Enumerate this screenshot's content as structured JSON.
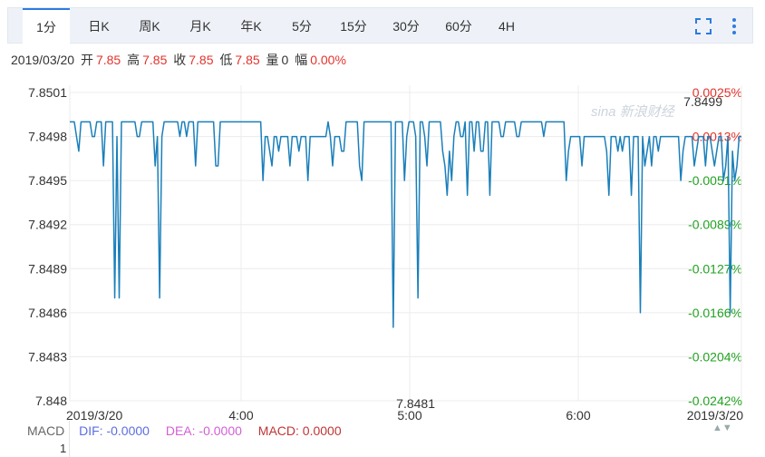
{
  "tabs": [
    {
      "label": "1分",
      "active": true
    },
    {
      "label": "日K"
    },
    {
      "label": "周K"
    },
    {
      "label": "月K"
    },
    {
      "label": "年K"
    },
    {
      "label": "5分"
    },
    {
      "label": "15分"
    },
    {
      "label": "30分"
    },
    {
      "label": "60分"
    },
    {
      "label": "4H"
    }
  ],
  "quote": {
    "date": "2019/03/20",
    "open_label": "开",
    "open": "7.85",
    "high_label": "高",
    "high": "7.85",
    "close_label": "收",
    "close": "7.85",
    "low_label": "低",
    "low": "7.85",
    "vol_label": "量",
    "vol": "0",
    "range_label": "幅",
    "range": "0.00%"
  },
  "watermark": "新浪财经",
  "colors": {
    "line": "#1a7fba",
    "up": "#e5322b",
    "down": "#22a322",
    "accent": "#2e7be0"
  },
  "chart_data": {
    "type": "line",
    "y_ticks": [
      "7.8501",
      "7.8498",
      "7.8495",
      "7.8492",
      "7.8489",
      "7.8486",
      "7.8483",
      "7.848"
    ],
    "pct_ticks": [
      "0.0025%",
      "0.0013%",
      "-0.0051%",
      "-0.0089%",
      "-0.0127%",
      "-0.0166%",
      "-0.0204%",
      "-0.0242%"
    ],
    "x_ticks": [
      "2019/3/20",
      "4:00",
      "5:00",
      "6:00",
      "2019/3/20"
    ],
    "ylim": [
      7.848,
      7.8501
    ],
    "max_label": "7.8499",
    "min_label": "7.8481",
    "values": [
      7.8499,
      7.8499,
      7.8499,
      7.8498,
      7.8497,
      7.8499,
      7.8499,
      7.8499,
      7.8499,
      7.8499,
      7.8498,
      7.8498,
      7.8499,
      7.8499,
      7.8499,
      7.8496,
      7.8499,
      7.8499,
      7.8499,
      7.8499,
      7.8487,
      7.8498,
      7.8487,
      7.8499,
      7.8499,
      7.8499,
      7.8499,
      7.8499,
      7.8499,
      7.8499,
      7.8498,
      7.8498,
      7.8499,
      7.8499,
      7.8499,
      7.8499,
      7.8499,
      7.8499,
      7.8496,
      7.8498,
      7.8487,
      7.8498,
      7.8499,
      7.8499,
      7.8499,
      7.8499,
      7.8499,
      7.8499,
      7.8499,
      7.8498,
      7.8499,
      7.8499,
      7.8498,
      7.8499,
      7.8499,
      7.8499,
      7.8496,
      7.8499,
      7.8499,
      7.8499,
      7.8499,
      7.8499,
      7.8499,
      7.8499,
      7.8499,
      7.8496,
      7.8496,
      7.8499,
      7.8499,
      7.8499,
      7.8499,
      7.8499,
      7.8499,
      7.8499,
      7.8499,
      7.8499,
      7.8499,
      7.8499,
      7.8499,
      7.8499,
      7.8499,
      7.8499,
      7.8499,
      7.8499,
      7.8499,
      7.8499,
      7.8495,
      7.8498,
      7.8498,
      7.8497,
      7.8496,
      7.8498,
      7.8498,
      7.8497,
      7.8498,
      7.8498,
      7.8498,
      7.8498,
      7.8496,
      7.8498,
      7.8498,
      7.8498,
      7.8497,
      7.8498,
      7.8498,
      7.8498,
      7.8495,
      7.8498,
      7.8498,
      7.8498,
      7.8498,
      7.8498,
      7.8498,
      7.8498,
      7.8498,
      7.8499,
      7.8498,
      7.8496,
      7.8498,
      7.8498,
      7.8498,
      7.8497,
      7.8497,
      7.8499,
      7.8499,
      7.8499,
      7.8499,
      7.8499,
      7.8499,
      7.8496,
      7.8495,
      7.8499,
      7.8499,
      7.8499,
      7.8499,
      7.8499,
      7.8499,
      7.8499,
      7.8499,
      7.8499,
      7.8499,
      7.8499,
      7.8499,
      7.8499,
      7.8485,
      7.8499,
      7.8499,
      7.8499,
      7.8499,
      7.8495,
      7.8498,
      7.8499,
      7.8499,
      7.8499,
      7.8498,
      7.8487,
      7.8499,
      7.8499,
      7.8498,
      7.8496,
      7.8499,
      7.8499,
      7.8499,
      7.8499,
      7.8499,
      7.8499,
      7.8497,
      7.8496,
      7.8494,
      7.8497,
      7.8495,
      7.8498,
      7.8499,
      7.8499,
      7.8498,
      7.8498,
      7.8499,
      7.8494,
      7.8499,
      7.8499,
      7.8497,
      7.8499,
      7.8499,
      7.8497,
      7.8497,
      7.8499,
      7.8499,
      7.8494,
      7.8499,
      7.8499,
      7.8499,
      7.8499,
      7.8498,
      7.8498,
      7.8499,
      7.8499,
      7.8499,
      7.8499,
      7.8499,
      7.8498,
      7.8498,
      7.8499,
      7.8499,
      7.8499,
      7.8499,
      7.8499,
      7.8499,
      7.8499,
      7.8499,
      7.8499,
      7.8499,
      7.8498,
      7.8499,
      7.8499,
      7.8499,
      7.8499,
      7.8499,
      7.8499,
      7.8499,
      7.8499,
      7.8499,
      7.8495,
      7.8497,
      7.8498,
      7.8498,
      7.8498,
      7.8498,
      7.8498,
      7.8496,
      7.8498,
      7.8498,
      7.8498,
      7.8498,
      7.8498,
      7.8498,
      7.8498,
      7.8498,
      7.8498,
      7.8498,
      7.8497,
      7.8494,
      7.8498,
      7.8498,
      7.8498,
      7.8497,
      7.8498,
      7.8497,
      7.8498,
      7.8498,
      7.8498,
      7.8494,
      7.8498,
      7.8498,
      7.8498,
      7.8486,
      7.8498,
      7.8496,
      7.8497,
      7.8498,
      7.8496,
      7.8498,
      7.8498,
      7.8497,
      7.8498,
      7.8498,
      7.8498,
      7.8498,
      7.8498,
      7.8498,
      7.8498,
      7.8498,
      7.8498,
      7.8495,
      7.8497,
      7.8498,
      7.8498,
      7.8498,
      7.8498,
      7.8496,
      7.8497,
      7.8498,
      7.8498,
      7.8498,
      7.8496,
      7.8498,
      7.8498,
      7.8497,
      7.8496,
      7.8497,
      7.8498,
      7.8498,
      7.8495,
      7.8496,
      7.8498,
      7.8486,
      7.8497,
      7.8495,
      7.8496,
      7.8498,
      7.8498
    ]
  },
  "macd": {
    "title": "MACD",
    "dif": "DIF: -0.0000",
    "dea": "DEA: -0.0000",
    "macd": "MACD: 0.0000",
    "axis_tick": "1"
  }
}
